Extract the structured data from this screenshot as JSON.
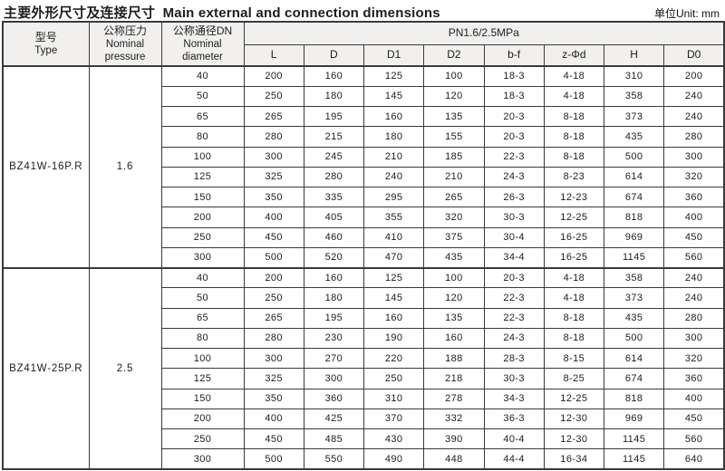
{
  "page": {
    "title_zh": "主要外形尺寸及连接尺寸",
    "title_en": "Main external and connection dimensions",
    "unit_label": "单位Unit: mm"
  },
  "colors": {
    "border": "#3a3a3a",
    "header_bg": "#f1f0ee",
    "cell_bg": "#ffffff",
    "text": "#1d1d1d"
  },
  "table": {
    "headers": {
      "type": [
        "型号",
        "Type"
      ],
      "pressure": [
        "公称压力",
        "Nominal",
        "pressure"
      ],
      "diameter": [
        "公称通径DN",
        "Nominal",
        "diameter"
      ],
      "pn_group": "PN1.6/2.5MPa",
      "dims": [
        "L",
        "D",
        "D1",
        "D2",
        "b-f",
        "z-Φd",
        "H",
        "D0"
      ]
    },
    "groups": [
      {
        "type": "BZ41W-16P.R",
        "pressure": "1.6",
        "rows": [
          [
            "40",
            "200",
            "160",
            "125",
            "100",
            "18-3",
            "4-18",
            "310",
            "200"
          ],
          [
            "50",
            "250",
            "180",
            "145",
            "120",
            "18-3",
            "4-18",
            "358",
            "240"
          ],
          [
            "65",
            "265",
            "195",
            "160",
            "135",
            "20-3",
            "8-18",
            "373",
            "240"
          ],
          [
            "80",
            "280",
            "215",
            "180",
            "155",
            "20-3",
            "8-18",
            "435",
            "280"
          ],
          [
            "100",
            "300",
            "245",
            "210",
            "185",
            "22-3",
            "8-18",
            "500",
            "300"
          ],
          [
            "125",
            "325",
            "280",
            "240",
            "210",
            "24-3",
            "8-23",
            "614",
            "320"
          ],
          [
            "150",
            "350",
            "335",
            "295",
            "265",
            "26-3",
            "12-23",
            "674",
            "360"
          ],
          [
            "200",
            "400",
            "405",
            "355",
            "320",
            "30-3",
            "12-25",
            "818",
            "400"
          ],
          [
            "250",
            "450",
            "460",
            "410",
            "375",
            "30-4",
            "16-25",
            "969",
            "450"
          ],
          [
            "300",
            "500",
            "520",
            "470",
            "435",
            "34-4",
            "16-25",
            "1145",
            "560"
          ]
        ]
      },
      {
        "type": "BZ41W-25P.R",
        "pressure": "2.5",
        "rows": [
          [
            "40",
            "200",
            "160",
            "125",
            "100",
            "20-3",
            "4-18",
            "358",
            "240"
          ],
          [
            "50",
            "250",
            "180",
            "145",
            "120",
            "22-3",
            "4-18",
            "373",
            "240"
          ],
          [
            "65",
            "265",
            "195",
            "160",
            "135",
            "22-3",
            "8-18",
            "435",
            "280"
          ],
          [
            "80",
            "280",
            "230",
            "190",
            "160",
            "24-3",
            "8-18",
            "500",
            "300"
          ],
          [
            "100",
            "300",
            "270",
            "220",
            "188",
            "28-3",
            "8-15",
            "614",
            "320"
          ],
          [
            "125",
            "325",
            "300",
            "250",
            "218",
            "30-3",
            "8-25",
            "674",
            "360"
          ],
          [
            "150",
            "350",
            "360",
            "310",
            "278",
            "34-3",
            "12-25",
            "818",
            "400"
          ],
          [
            "200",
            "400",
            "425",
            "370",
            "332",
            "36-3",
            "12-30",
            "969",
            "450"
          ],
          [
            "250",
            "450",
            "485",
            "430",
            "390",
            "40-4",
            "12-30",
            "1145",
            "560"
          ],
          [
            "300",
            "500",
            "550",
            "490",
            "448",
            "44-4",
            "16-34",
            "1145",
            "640"
          ]
        ]
      }
    ]
  }
}
